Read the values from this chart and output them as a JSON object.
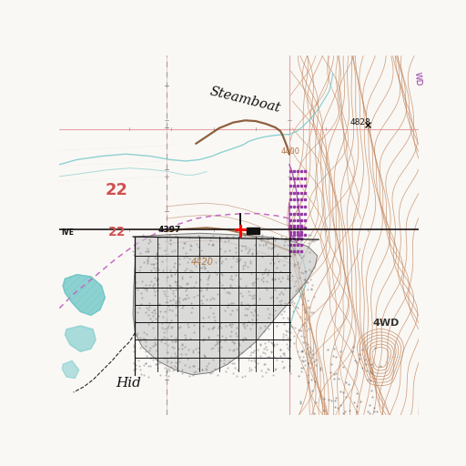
{
  "map_bg": "#faf8f5",
  "contour_color": "#c0845a",
  "contour_lw": 0.55,
  "water_color": "#72c8c8",
  "road_color": "#111111",
  "pink_line": "#e08888",
  "purple_dash": "#c060c0",
  "purple_dot": "#9030a0",
  "section_red": "#d05050",
  "elev_brown": "#b07845",
  "text_steamboat": "Steamboat",
  "text_4828": "4828",
  "text_4400": "4400",
  "text_4420": "4420",
  "text_4397": "4397",
  "text_4WD": "4WD",
  "text_22a": "22",
  "text_22b": "22",
  "text_IVE": "IVE",
  "text_Hid": "Hid",
  "fig_width": 5.12,
  "fig_height": 5.12,
  "dpi": 100
}
